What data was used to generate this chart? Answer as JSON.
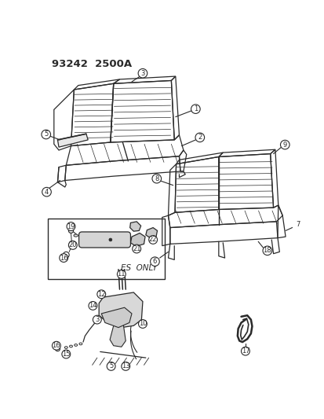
{
  "title": "93242  2500A",
  "bg_color": "#ffffff",
  "line_color": "#2a2a2a",
  "fig_width": 4.14,
  "fig_height": 5.33,
  "dpi": 100,
  "es_only_text": "ES  ONLY"
}
